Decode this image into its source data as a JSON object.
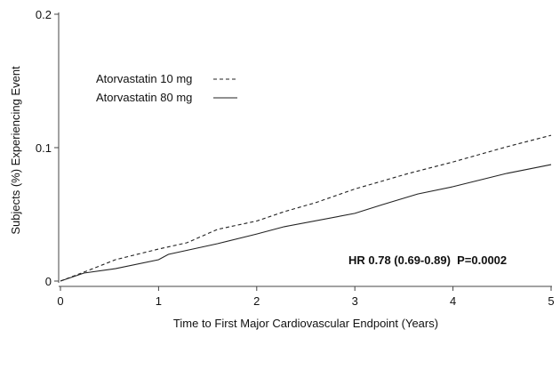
{
  "chart_data": {
    "type": "line",
    "xlabel": "Time to First Major Cardiovascular Endpoint (Years)",
    "ylabel": "Subjects (%) Experiencing Event",
    "xlim": [
      0,
      5
    ],
    "ylim": [
      0,
      0.2
    ],
    "xticks": [
      "0",
      "1",
      "2",
      "3",
      "4",
      "5"
    ],
    "yticks": [
      "0",
      "0.1",
      "0.2"
    ],
    "grid": false,
    "legend_position": "top-left",
    "annotation": "HR 0.78 (0.69-0.89)  P=0.0002",
    "series": [
      {
        "name": "Atorvastatin 10 mg",
        "style": "dashed",
        "x": [
          0,
          0.24,
          0.38,
          0.56,
          1.0,
          1.29,
          1.6,
          2.0,
          2.28,
          2.6,
          3.0,
          3.55,
          4.0,
          4.55,
          5.0
        ],
        "y": [
          0,
          0.0067,
          0.0107,
          0.016,
          0.024,
          0.0287,
          0.0387,
          0.045,
          0.052,
          0.0587,
          0.069,
          0.0807,
          0.0893,
          0.1007,
          0.1093
        ]
      },
      {
        "name": "Atorvastatin 80 mg",
        "style": "solid",
        "x": [
          0,
          0.24,
          0.56,
          1.0,
          1.1,
          1.6,
          2.0,
          2.28,
          3.0,
          3.28,
          3.64,
          4.0,
          4.55,
          5.0
        ],
        "y": [
          0,
          0.006,
          0.0093,
          0.016,
          0.02,
          0.028,
          0.0353,
          0.0407,
          0.0507,
          0.0573,
          0.0653,
          0.0707,
          0.0807,
          0.0873
        ]
      }
    ]
  }
}
